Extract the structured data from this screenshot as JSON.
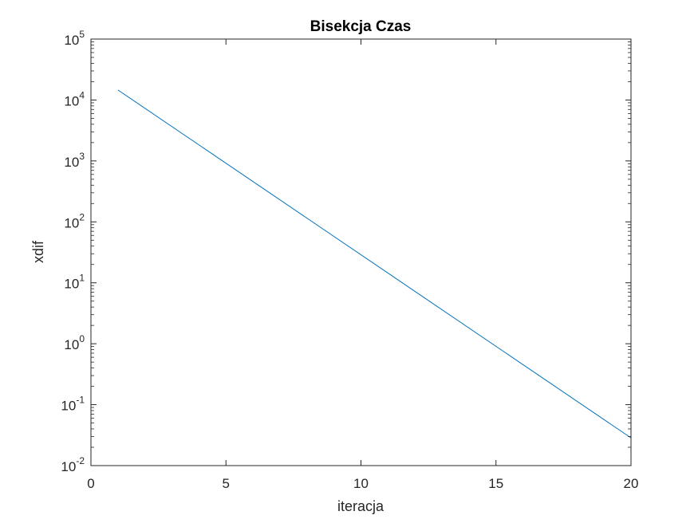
{
  "chart_data": {
    "type": "line",
    "title": "Bisekcja Czas",
    "xlabel": "iteracja",
    "ylabel": "xdif",
    "xlim": [
      0,
      20
    ],
    "ylim": [
      0.01,
      100000
    ],
    "yscale": "log",
    "grid": false,
    "legend": "none",
    "xticks": [
      0,
      5,
      10,
      15,
      20
    ],
    "yticks": [
      {
        "value": 0.01,
        "base": "10",
        "exp": "-2"
      },
      {
        "value": 0.1,
        "base": "10",
        "exp": "-1"
      },
      {
        "value": 1,
        "base": "10",
        "exp": "0"
      },
      {
        "value": 10,
        "base": "10",
        "exp": "1"
      },
      {
        "value": 100,
        "base": "10",
        "exp": "2"
      },
      {
        "value": 1000,
        "base": "10",
        "exp": "3"
      },
      {
        "value": 10000,
        "base": "10",
        "exp": "4"
      },
      {
        "value": 100000,
        "base": "10",
        "exp": "5"
      }
    ],
    "series": [
      {
        "color": "#0072BD",
        "x": [
          1,
          20
        ],
        "y": [
          14600,
          0.0285
        ]
      }
    ]
  }
}
